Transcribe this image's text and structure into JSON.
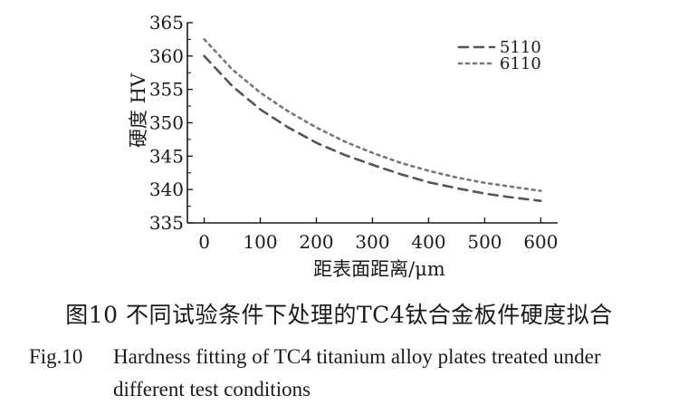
{
  "chart_data": {
    "type": "line",
    "xlabel": "距表面距离/μm",
    "ylabel": "硬度 HV",
    "xlim": [
      -30,
      630
    ],
    "ylim": [
      335,
      365
    ],
    "xticks": [
      0,
      100,
      200,
      300,
      400,
      500,
      600
    ],
    "yticks": [
      335,
      340,
      345,
      350,
      355,
      360,
      365
    ],
    "grid": false,
    "legend_position": "top-right",
    "x": [
      0,
      50,
      100,
      150,
      200,
      250,
      300,
      350,
      400,
      450,
      500,
      550,
      600
    ],
    "series": [
      {
        "name": "5110",
        "style": "dashed",
        "color": "#555555",
        "values": [
          360.0,
          355.5,
          352.0,
          349.3,
          347.0,
          345.2,
          343.7,
          342.3,
          341.1,
          340.2,
          339.4,
          338.8,
          338.3
        ]
      },
      {
        "name": "6110",
        "style": "dotted",
        "color": "#777777",
        "values": [
          362.5,
          358.0,
          354.5,
          351.7,
          349.3,
          347.2,
          345.5,
          344.0,
          342.8,
          341.8,
          341.0,
          340.4,
          339.8
        ]
      }
    ]
  },
  "caption": {
    "cn": "图10  不同试验条件下处理的TC4钛合金板件硬度拟合",
    "en_label": "Fig.10",
    "en_line1": "Hardness fitting of TC4 titanium alloy plates treated under",
    "en_line2": "different test conditions"
  }
}
